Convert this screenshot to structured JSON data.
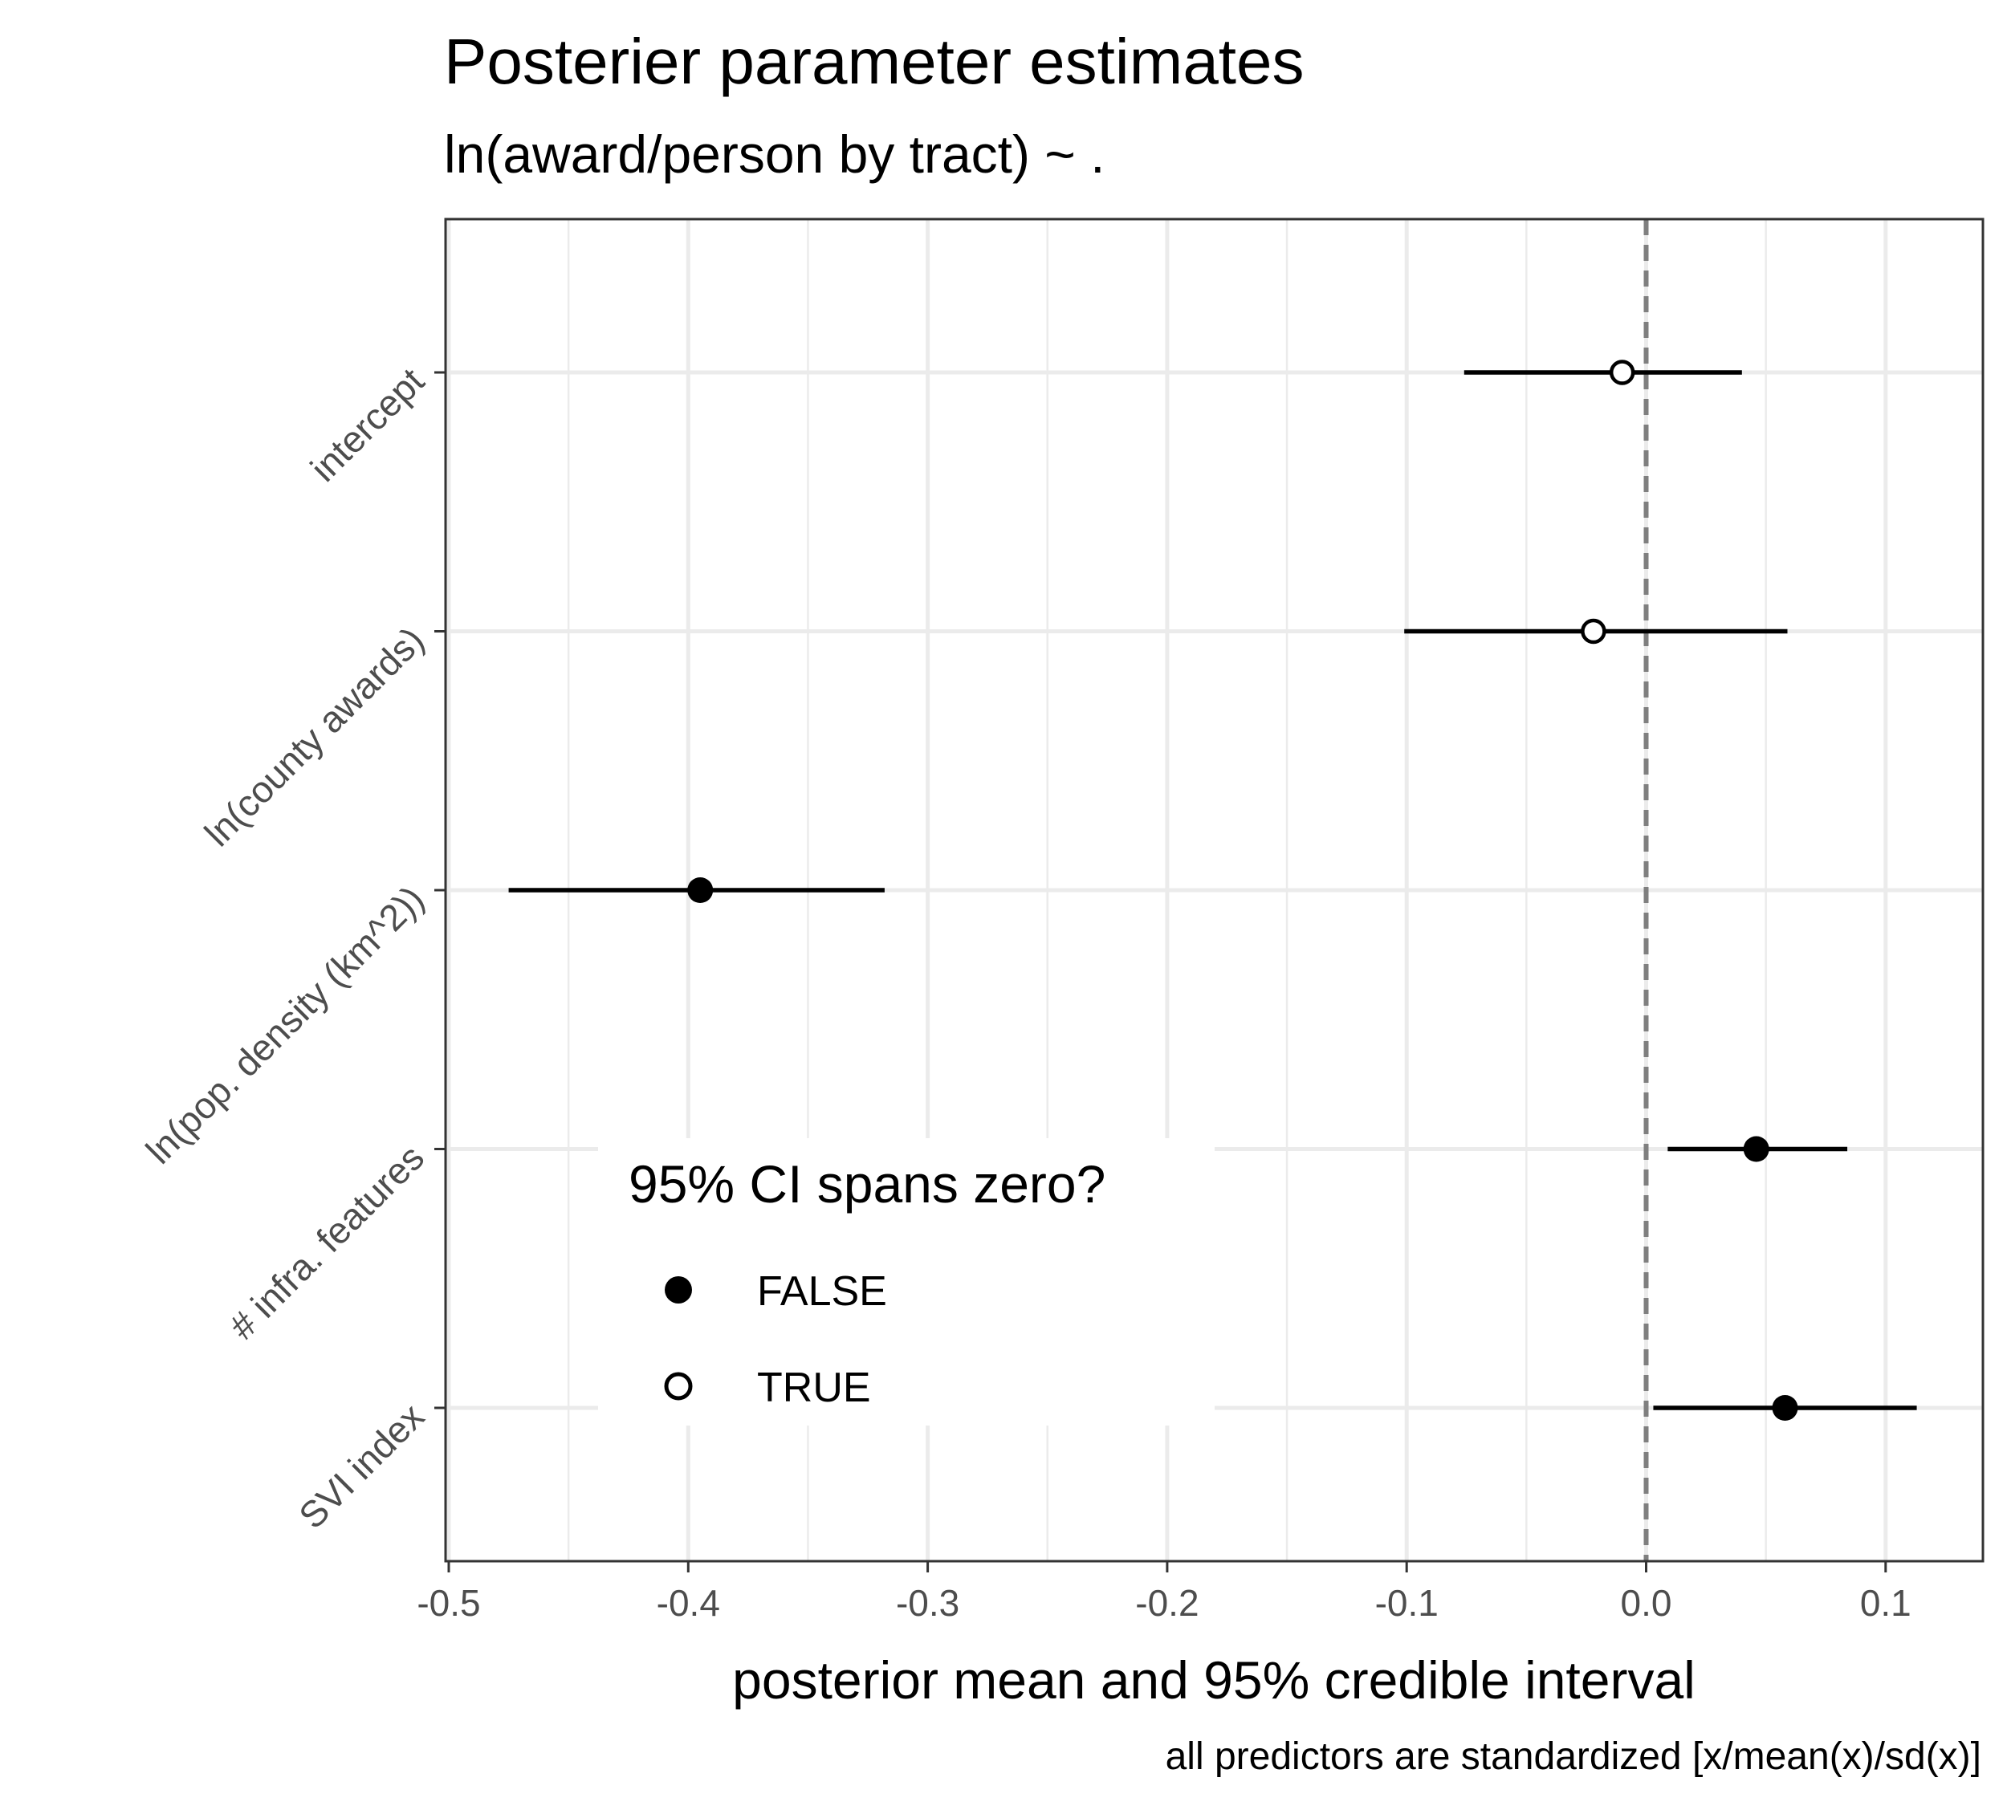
{
  "chart_data": {
    "type": "scatter",
    "subtype": "point-range",
    "title": "Posterier parameter estimates",
    "subtitle": "ln(award/person by tract) ~ .",
    "xlabel": "posterior mean and 95% credible interval",
    "ylabel": "",
    "caption": "all predictors are standardized [x/mean(x)/sd(x)]",
    "xlim": [
      -0.5,
      0.14
    ],
    "x_ticks": [
      -0.5,
      -0.4,
      -0.3,
      -0.2,
      -0.1,
      0.0,
      0.1
    ],
    "x_tick_labels": [
      "-0.5",
      "-0.4",
      "-0.3",
      "-0.2",
      "-0.1",
      "0.0",
      "0.1"
    ],
    "reference_line": {
      "x": 0,
      "style": "dashed"
    },
    "grid": true,
    "categories": [
      "intercept",
      "ln(county awards)",
      "ln(pop. density (km^2))",
      "# infra. features",
      "SVI index"
    ],
    "points": [
      {
        "label": "intercept",
        "mean": -0.01,
        "lower": -0.076,
        "upper": 0.04,
        "ci_spans_zero": true
      },
      {
        "label": "ln(county awards)",
        "mean": -0.022,
        "lower": -0.101,
        "upper": 0.059,
        "ci_spans_zero": true
      },
      {
        "label": "ln(pop. density (km^2))",
        "mean": -0.395,
        "lower": -0.475,
        "upper": -0.318,
        "ci_spans_zero": false
      },
      {
        "label": "# infra. features",
        "mean": 0.046,
        "lower": 0.009,
        "upper": 0.084,
        "ci_spans_zero": false
      },
      {
        "label": "SVI index",
        "mean": 0.058,
        "lower": 0.003,
        "upper": 0.113,
        "ci_spans_zero": false
      }
    ],
    "legend": {
      "title": "95% CI spans zero?",
      "placement": "bottom-left inside panel",
      "items": [
        {
          "label": "FALSE",
          "marker": "filled-circle"
        },
        {
          "label": "TRUE",
          "marker": "open-circle"
        }
      ]
    },
    "colors": {
      "points": "#000000",
      "grid": "#ebebeb",
      "reference_line": "#7f7f7f",
      "panel_border": "#333333",
      "tick_text": "#4d4d4d"
    }
  }
}
